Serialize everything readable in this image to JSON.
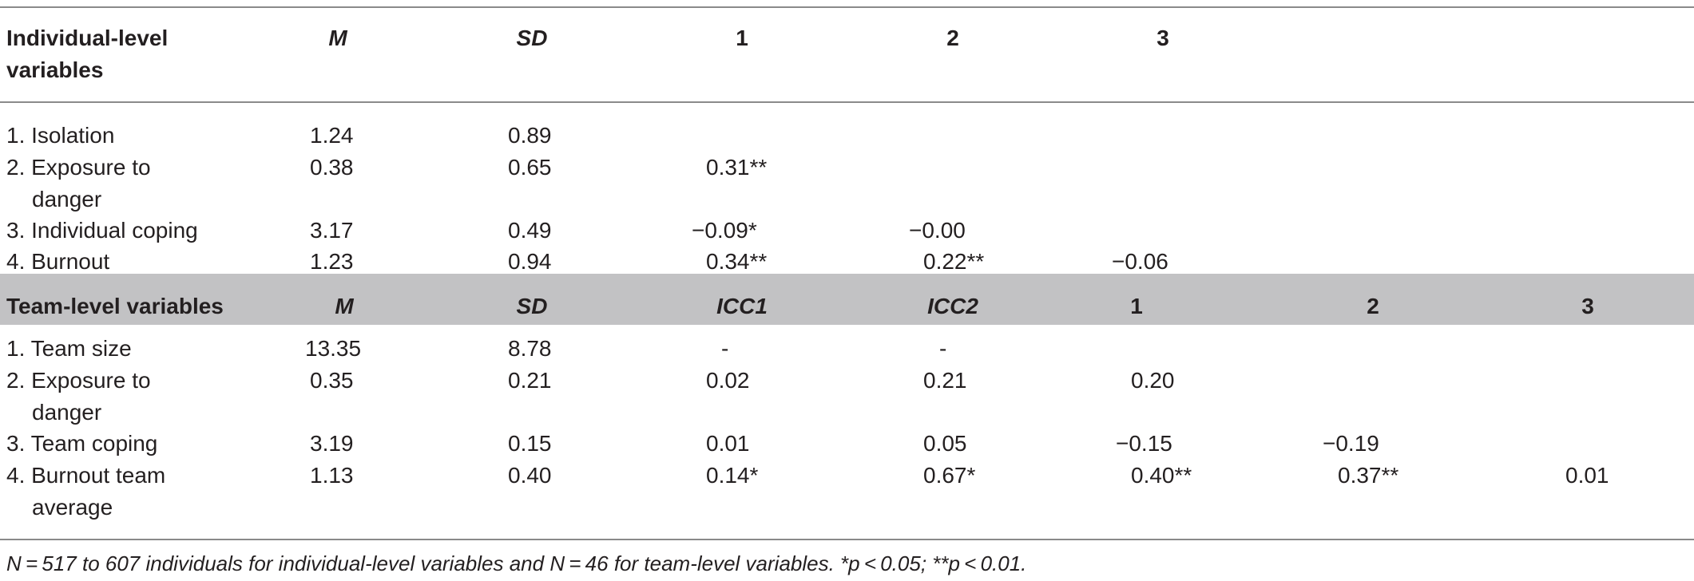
{
  "individual": {
    "header": {
      "label_line1": "Individual-level",
      "label_line2": "variables",
      "m": "M",
      "sd": "SD",
      "c1": "1",
      "c2": "2",
      "c3": "3"
    },
    "rows": [
      {
        "label": "1. Isolation",
        "label2": "",
        "m": "1.24",
        "sd": "0.89",
        "c1": "",
        "c2": "",
        "c3": ""
      },
      {
        "label": "2. Exposure to",
        "label2": "danger",
        "m": "0.38",
        "sd": "0.65",
        "c1": "0.31**",
        "c2": "",
        "c3": ""
      },
      {
        "label": "3. Individual coping",
        "label2": "",
        "m": "3.17",
        "sd": "0.49",
        "c1": "−0.09*",
        "c2": "−0.00",
        "c3": ""
      },
      {
        "label": "4. Burnout",
        "label2": "",
        "m": "1.23",
        "sd": "0.94",
        "c1": "0.34**",
        "c2": "0.22**",
        "c3": "−0.06"
      }
    ]
  },
  "team": {
    "header": {
      "label": "Team-level variables",
      "m": "M",
      "sd": "SD",
      "icc1": "ICC1",
      "icc2": "ICC2",
      "c1": "1",
      "c2": "2",
      "c3": "3"
    },
    "rows": [
      {
        "label": "1. Team size",
        "label2": "",
        "m": "13.35",
        "sd": "8.78",
        "icc1": "-",
        "icc2": "-",
        "c1": "",
        "c2": "",
        "c3": ""
      },
      {
        "label": "2. Exposure to",
        "label2": "danger",
        "m": "0.35",
        "sd": "0.21",
        "icc1": "0.02",
        "icc2": "0.21",
        "c1": "0.20",
        "c2": "",
        "c3": ""
      },
      {
        "label": "3. Team coping",
        "label2": "",
        "m": "3.19",
        "sd": "0.15",
        "icc1": "0.01",
        "icc2": "0.05",
        "c1": "−0.15",
        "c2": "−0.19",
        "c3": ""
      },
      {
        "label": "4. Burnout team",
        "label2": "average",
        "m": "1.13",
        "sd": "0.40",
        "icc1": "0.14*",
        "icc2": "0.67*",
        "c1": "0.40**",
        "c2": "0.37**",
        "c3": "0.01"
      }
    ]
  },
  "footnote": "N = 517 to 607 individuals for individual-level variables and N = 46 for team-level variables. *p < 0.05; **p < 0.01.",
  "colors": {
    "rule": "#8a8a8a",
    "team_band": "#c2c2c4",
    "text": "#231f20"
  }
}
